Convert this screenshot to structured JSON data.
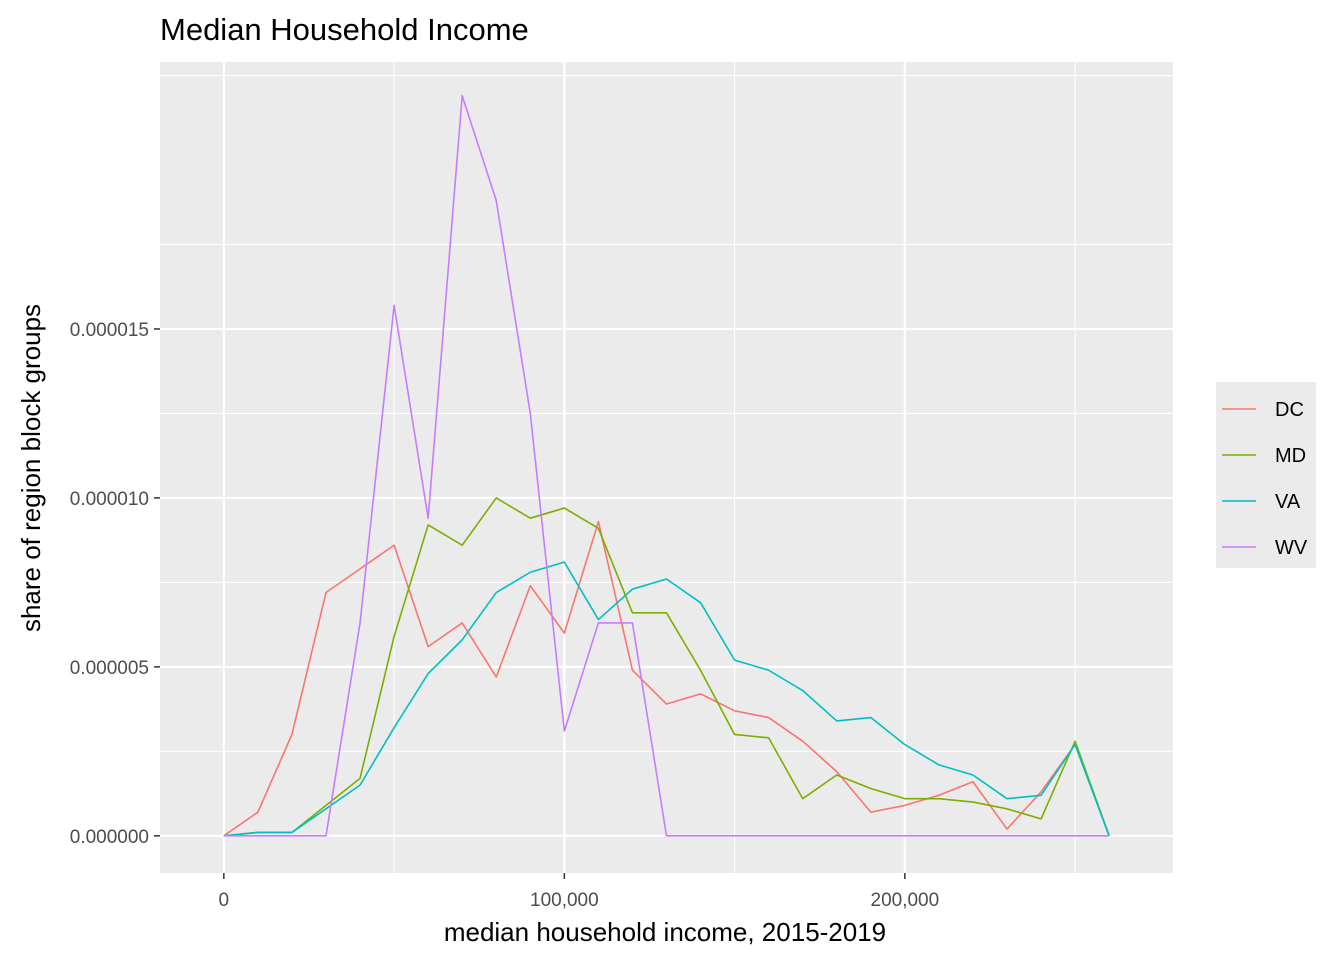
{
  "chart_data": {
    "type": "line",
    "title": "Median Household Income",
    "xlabel": "median household income, 2015-2019",
    "ylabel": "share of region block groups",
    "xlim": [
      -18750,
      278750
    ],
    "ylim": [
      -1.1e-06,
      2.29e-05
    ],
    "x_ticks": [
      0,
      100000,
      200000
    ],
    "x_tick_labels": [
      "0",
      "100,000",
      "200,000"
    ],
    "x_minor_ticks": [
      50000,
      150000,
      250000
    ],
    "y_ticks": [
      0,
      5e-06,
      1e-05,
      1.5e-05
    ],
    "y_tick_labels": [
      "0.000000",
      "0.000005",
      "0.000010",
      "0.000015"
    ],
    "y_minor_ticks": [
      2.5e-06,
      7.5e-06,
      1.25e-05,
      1.75e-05,
      2.25e-05
    ],
    "grid": true,
    "legend_position": "right",
    "x": [
      0,
      10000,
      20000,
      30000,
      40000,
      50000,
      60000,
      70000,
      80000,
      90000,
      100000,
      110000,
      120000,
      130000,
      140000,
      150000,
      160000,
      170000,
      180000,
      190000,
      200000,
      210000,
      220000,
      230000,
      240000,
      250000,
      260000
    ],
    "series": [
      {
        "name": "DC",
        "color": "#F8766D",
        "values": [
          0,
          7e-07,
          3e-06,
          7.2e-06,
          7.9e-06,
          8.6e-06,
          5.6e-06,
          6.3e-06,
          4.7e-06,
          7.4e-06,
          6e-06,
          9.3e-06,
          4.9e-06,
          3.9e-06,
          4.2e-06,
          3.7e-06,
          3.5e-06,
          2.8e-06,
          1.9e-06,
          7e-07,
          9e-07,
          1.2e-06,
          1.6e-06,
          2e-07,
          1.3e-06,
          2.7e-06,
          0
        ]
      },
      {
        "name": "MD",
        "color": "#7CAE00",
        "values": [
          0,
          1e-07,
          1e-07,
          9e-07,
          1.7e-06,
          5.9e-06,
          9.2e-06,
          8.6e-06,
          1e-05,
          9.4e-06,
          9.7e-06,
          9.1e-06,
          6.6e-06,
          6.6e-06,
          4.9e-06,
          3e-06,
          2.9e-06,
          1.1e-06,
          1.8e-06,
          1.4e-06,
          1.1e-06,
          1.1e-06,
          1e-06,
          8e-07,
          5e-07,
          2.8e-06,
          0
        ]
      },
      {
        "name": "VA",
        "color": "#00BFC4",
        "values": [
          0,
          1e-07,
          1e-07,
          8e-07,
          1.5e-06,
          3.2e-06,
          4.8e-06,
          5.8e-06,
          7.2e-06,
          7.8e-06,
          8.1e-06,
          6.4e-06,
          7.3e-06,
          7.6e-06,
          6.9e-06,
          5.2e-06,
          4.9e-06,
          4.3e-06,
          3.4e-06,
          3.5e-06,
          2.7e-06,
          2.1e-06,
          1.8e-06,
          1.1e-06,
          1.2e-06,
          2.7e-06,
          0
        ]
      },
      {
        "name": "WV",
        "color": "#C77CFF",
        "values": [
          0,
          0,
          0,
          0,
          6.3e-06,
          1.57e-05,
          9.4e-06,
          2.19e-05,
          1.88e-05,
          1.25e-05,
          3.1e-06,
          6.3e-06,
          6.3e-06,
          0,
          0,
          0,
          0,
          0,
          0,
          0,
          0,
          0,
          0,
          0,
          0,
          0,
          0
        ]
      }
    ]
  }
}
